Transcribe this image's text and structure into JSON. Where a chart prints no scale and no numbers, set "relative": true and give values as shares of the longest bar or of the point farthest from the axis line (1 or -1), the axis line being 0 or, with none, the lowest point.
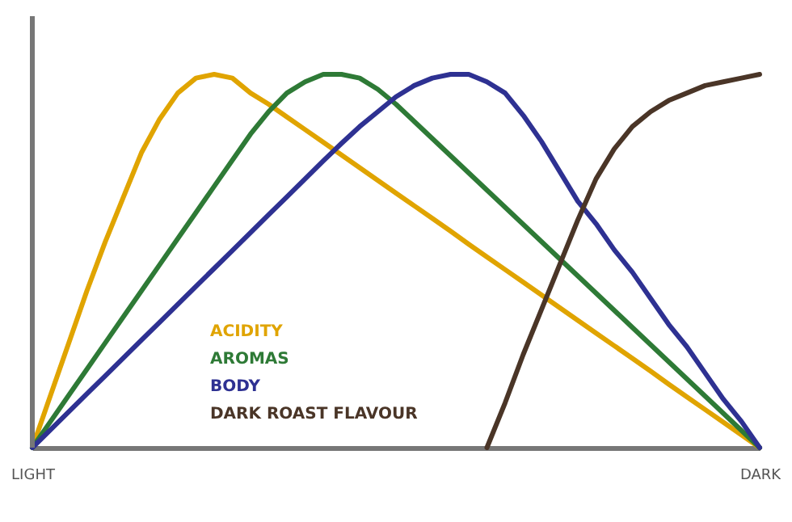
{
  "chart_data": {
    "type": "line",
    "relative": true,
    "categories": [
      "LIGHT",
      null,
      null,
      null,
      null,
      null,
      null,
      null,
      null,
      null,
      null,
      null,
      null,
      null,
      null,
      null,
      null,
      null,
      null,
      null,
      null,
      null,
      null,
      null,
      null,
      null,
      null,
      null,
      null,
      null,
      null,
      null,
      null,
      null,
      null,
      null,
      null,
      null,
      null,
      null,
      "DARK"
    ],
    "tick_labels": "x",
    "grid": false,
    "marker": "none",
    "line_style": "solid",
    "series": [
      {
        "name": "ACIDITY",
        "color": "#e0a400",
        "values": [
          0,
          0.14,
          0.28,
          0.42,
          0.55,
          0.67,
          0.79,
          0.88,
          0.95,
          0.99,
          1.0,
          0.99,
          0.95,
          0.92,
          0.886,
          0.852,
          0.818,
          0.784,
          0.75,
          0.716,
          0.682,
          0.648,
          0.614,
          0.58,
          0.545,
          0.511,
          0.477,
          0.443,
          0.409,
          0.375,
          0.341,
          0.307,
          0.273,
          0.239,
          0.205,
          0.17,
          0.136,
          0.102,
          0.068,
          0.034,
          0
        ]
      },
      {
        "name": "AROMAS",
        "color": "#2e7a36",
        "values": [
          0,
          0.07,
          0.14,
          0.21,
          0.28,
          0.35,
          0.42,
          0.49,
          0.56,
          0.63,
          0.7,
          0.77,
          0.84,
          0.9,
          0.95,
          0.98,
          1.0,
          1.0,
          0.99,
          0.96,
          0.92,
          0.874,
          0.828,
          0.782,
          0.736,
          0.69,
          0.644,
          0.598,
          0.552,
          0.506,
          0.46,
          0.414,
          0.368,
          0.322,
          0.276,
          0.23,
          0.184,
          0.138,
          0.092,
          0.046,
          0
        ]
      },
      {
        "name": "BODY",
        "color": "#2e3192",
        "values": [
          0,
          0.048,
          0.096,
          0.144,
          0.192,
          0.24,
          0.288,
          0.336,
          0.384,
          0.432,
          0.48,
          0.528,
          0.576,
          0.624,
          0.672,
          0.72,
          0.768,
          0.815,
          0.86,
          0.9,
          0.94,
          0.97,
          0.99,
          1.0,
          1.0,
          0.98,
          0.95,
          0.89,
          0.82,
          0.74,
          0.66,
          0.6,
          0.53,
          0.47,
          0.4,
          0.33,
          0.27,
          0.2,
          0.13,
          0.07,
          0
        ]
      },
      {
        "name": "DARK ROAST FLAVOUR",
        "color": "#4a3527",
        "values": [
          null,
          null,
          null,
          null,
          null,
          null,
          null,
          null,
          null,
          null,
          null,
          null,
          null,
          null,
          null,
          null,
          null,
          null,
          null,
          null,
          null,
          null,
          null,
          null,
          null,
          0,
          0.12,
          0.25,
          0.37,
          0.49,
          0.61,
          0.72,
          0.8,
          0.86,
          0.9,
          0.93,
          0.95,
          0.97,
          0.98,
          0.99,
          1.0
        ]
      }
    ]
  }
}
